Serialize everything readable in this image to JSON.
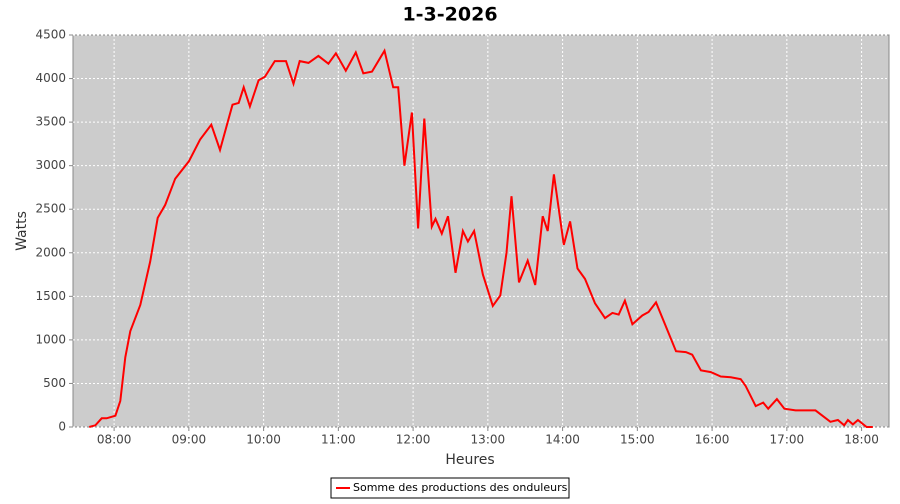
{
  "chart_data": {
    "type": "line",
    "title": "1-3-2026",
    "x_label": "Heures",
    "y_label": "Watts",
    "x": [
      "07:40",
      "07:45",
      "07:50",
      "07:54",
      "08:01",
      "08:05",
      "08:09",
      "08:13",
      "08:21",
      "08:29",
      "08:35",
      "08:41",
      "08:49",
      "09:00",
      "09:09",
      "09:18",
      "09:25",
      "09:35",
      "09:40",
      "09:44",
      "09:49",
      "09:56",
      "10:01",
      "10:09",
      "10:18",
      "10:24",
      "10:29",
      "10:36",
      "10:44",
      "10:52",
      "10:58",
      "11:06",
      "11:14",
      "11:20",
      "11:27",
      "11:37",
      "11:44",
      "11:48",
      "11:53",
      "11:59",
      "12:04",
      "12:09",
      "12:15",
      "12:18",
      "12:23",
      "12:28",
      "12:34",
      "12:40",
      "12:44",
      "12:49",
      "12:56",
      "13:04",
      "13:10",
      "13:15",
      "13:19",
      "13:25",
      "13:32",
      "13:38",
      "13:44",
      "13:48",
      "13:53",
      "14:01",
      "14:06",
      "14:12",
      "14:18",
      "14:26",
      "14:34",
      "14:40",
      "14:45",
      "14:50",
      "14:56",
      "15:04",
      "15:09",
      "15:15",
      "15:23",
      "15:31",
      "15:39",
      "15:44",
      "15:51",
      "15:59",
      "16:07",
      "16:15",
      "16:23",
      "16:27",
      "16:35",
      "16:41",
      "16:45",
      "16:52",
      "16:58",
      "17:07",
      "17:15",
      "17:23",
      "17:35",
      "17:41",
      "17:46",
      "17:49",
      "17:53",
      "17:57",
      "18:04",
      "18:09"
    ],
    "series": [
      {
        "name": "Somme des productions des onduleurs",
        "color": "#ff0000",
        "values": [
          0,
          20,
          100,
          100,
          130,
          300,
          800,
          1100,
          1400,
          1900,
          2400,
          2550,
          2850,
          3050,
          3300,
          3470,
          3180,
          3700,
          3720,
          3900,
          3680,
          3980,
          4020,
          4200,
          4200,
          3940,
          4200,
          4180,
          4260,
          4170,
          4290,
          4090,
          4300,
          4060,
          4080,
          4320,
          3900,
          3900,
          3000,
          3610,
          2280,
          3540,
          2300,
          2390,
          2220,
          2420,
          1770,
          2250,
          2130,
          2250,
          1750,
          1390,
          1510,
          2000,
          2650,
          1660,
          1910,
          1630,
          2420,
          2250,
          2900,
          2090,
          2360,
          1820,
          1700,
          1420,
          1250,
          1310,
          1290,
          1450,
          1180,
          1280,
          1320,
          1430,
          1150,
          870,
          860,
          830,
          650,
          630,
          580,
          570,
          550,
          470,
          240,
          280,
          210,
          320,
          210,
          190,
          190,
          190,
          60,
          80,
          20,
          80,
          30,
          80,
          0,
          0
        ]
      }
    ],
    "xlim": [
      "07:27",
      "18:22"
    ],
    "xticks": [
      "08:00",
      "09:00",
      "10:00",
      "11:00",
      "12:00",
      "13:00",
      "14:00",
      "15:00",
      "16:00",
      "17:00",
      "18:00"
    ],
    "ylim": [
      0,
      4500
    ],
    "yticks": [
      0,
      500,
      1000,
      1500,
      2000,
      2500,
      3000,
      3500,
      4000,
      4500
    ],
    "grid": true
  }
}
